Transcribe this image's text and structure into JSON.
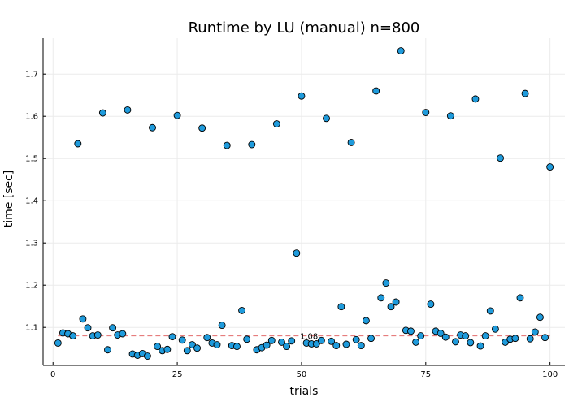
{
  "chart_data": {
    "type": "scatter",
    "title": "Runtime by LU (manual)  n=800",
    "xlabel": "trials",
    "ylabel": "time [sec]",
    "xlim": [
      -2,
      103
    ],
    "ylim": [
      1.01,
      1.785
    ],
    "xticks": [
      0,
      25,
      50,
      75,
      100
    ],
    "yticks": [
      1.1,
      1.2,
      1.3,
      1.4,
      1.5,
      1.6,
      1.7
    ],
    "grid": true,
    "legend": "none",
    "marker_color": "#1f9bdc",
    "marker_edge_color": "#000000",
    "reference_line": {
      "y": 1.08,
      "label": "1.08",
      "color": "#e26b6b",
      "style": "dashed"
    },
    "x": [
      1,
      2,
      3,
      4,
      5,
      6,
      7,
      8,
      9,
      10,
      11,
      12,
      13,
      14,
      15,
      16,
      17,
      18,
      19,
      20,
      21,
      22,
      23,
      24,
      25,
      26,
      27,
      28,
      29,
      30,
      31,
      32,
      33,
      34,
      35,
      36,
      37,
      38,
      39,
      40,
      41,
      42,
      43,
      44,
      45,
      46,
      47,
      48,
      49,
      50,
      51,
      52,
      53,
      54,
      55,
      56,
      57,
      58,
      59,
      60,
      61,
      62,
      63,
      64,
      65,
      66,
      67,
      68,
      69,
      70,
      71,
      72,
      73,
      74,
      75,
      76,
      77,
      78,
      79,
      80,
      81,
      82,
      83,
      84,
      85,
      86,
      87,
      88,
      89,
      90,
      91,
      92,
      93,
      94,
      95,
      96,
      97,
      98,
      99,
      100
    ],
    "y": [
      1.063,
      1.087,
      1.085,
      1.08,
      1.535,
      1.12,
      1.099,
      1.08,
      1.082,
      1.608,
      1.047,
      1.099,
      1.082,
      1.085,
      1.615,
      1.037,
      1.034,
      1.038,
      1.032,
      1.573,
      1.055,
      1.045,
      1.048,
      1.078,
      1.602,
      1.07,
      1.045,
      1.059,
      1.051,
      1.572,
      1.076,
      1.063,
      1.059,
      1.105,
      1.531,
      1.057,
      1.055,
      1.14,
      1.072,
      1.533,
      1.047,
      1.052,
      1.058,
      1.069,
      1.582,
      1.065,
      1.055,
      1.068,
      1.276,
      1.648,
      1.063,
      1.061,
      1.061,
      1.069,
      1.595,
      1.067,
      1.057,
      1.149,
      1.06,
      1.538,
      1.071,
      1.057,
      1.116,
      1.074,
      1.66,
      1.17,
      1.205,
      1.149,
      1.16,
      1.755,
      1.093,
      1.091,
      1.065,
      1.08,
      1.609,
      1.155,
      1.091,
      1.086,
      1.077,
      1.601,
      1.066,
      1.082,
      1.08,
      1.064,
      1.641,
      1.056,
      1.08,
      1.139,
      1.096,
      1.501,
      1.065,
      1.072,
      1.074,
      1.17,
      1.654,
      1.073,
      1.089,
      1.124,
      1.076,
      1.48
    ]
  }
}
